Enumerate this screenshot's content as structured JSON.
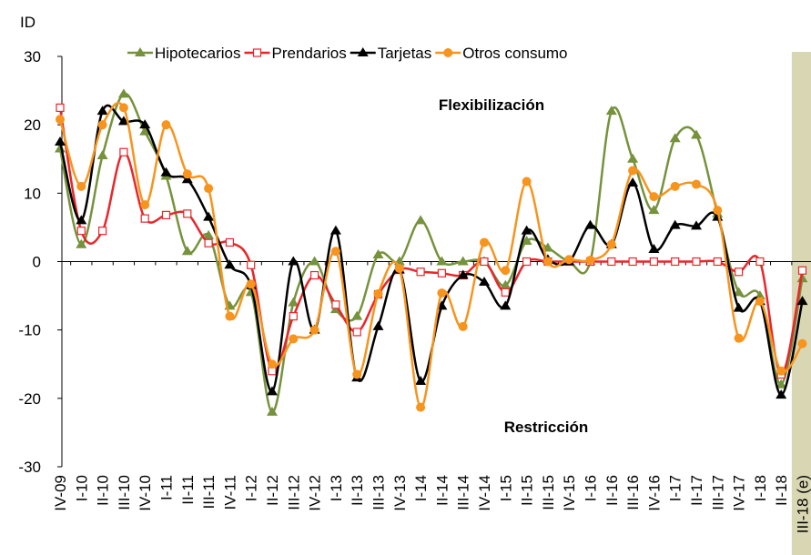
{
  "chart_data": {
    "type": "line",
    "y_label": "ID",
    "annotations": [
      "Flexibilización",
      "Restricción"
    ],
    "categories": [
      "IV-09",
      "I-10",
      "II-10",
      "III-10",
      "IV-10",
      "I-11",
      "II-11",
      "III-11",
      "IV-11",
      "I-12",
      "II-12",
      "III-12",
      "IV-12",
      "I-13",
      "II-13",
      "III-13",
      "IV-13",
      "I-14",
      "II-14",
      "III-14",
      "IV-14",
      "I-15",
      "II-15",
      "III-15",
      "IV-15",
      "I-16",
      "II-16",
      "III-16",
      "IV-16",
      "I-17",
      "II-17",
      "III-17",
      "IV-17",
      "I-18",
      "II-18",
      "III-18 (e)"
    ],
    "series": [
      {
        "name": "Hipotecarios",
        "color": "#76923c",
        "marker": "triangle",
        "values": [
          16.5,
          2.5,
          15.5,
          24.5,
          19,
          12.5,
          1.5,
          3.8,
          -6.5,
          -4.5,
          -22,
          -6,
          0,
          -7,
          -8,
          1,
          0,
          6,
          0,
          0,
          0,
          -3.5,
          3,
          2,
          0,
          0,
          22,
          15,
          7.5,
          18,
          18.5,
          7,
          -4.5,
          -5,
          -18,
          -2.5
        ]
      },
      {
        "name": "Prendarios",
        "color": "#e8262b",
        "marker": "square-open",
        "values": [
          22.5,
          4.5,
          4.5,
          16,
          6.3,
          6.8,
          7,
          2.7,
          2.8,
          -0.5,
          -16,
          -8,
          -2,
          -6.3,
          -10.3,
          -4.8,
          -1.2,
          -1.5,
          -1.7,
          -2,
          0,
          -4.5,
          0,
          0,
          0,
          0,
          0,
          0,
          0,
          0,
          0,
          0,
          -1.5,
          0,
          -16.5,
          -1.3
        ]
      },
      {
        "name": "Tarjetas",
        "color": "#000000",
        "marker": "triangle",
        "values": [
          17.5,
          6,
          22,
          20.5,
          20,
          13,
          12,
          6.5,
          -0.5,
          -3.5,
          -19,
          0,
          -10,
          4.5,
          -17,
          -9.5,
          -1.2,
          -17.5,
          -6.5,
          -2,
          -3,
          -6.5,
          4.5,
          0.3,
          0,
          5.3,
          2.5,
          11.5,
          1.8,
          5.3,
          5.2,
          6.5,
          -6.8,
          -5.8,
          -19.5,
          -5.8
        ]
      },
      {
        "name": "Otros consumo",
        "color": "#f7941d",
        "marker": "circle",
        "values": [
          20.8,
          11,
          20,
          22.5,
          8.3,
          20,
          12.8,
          10.7,
          -8,
          -3.3,
          -15,
          -11.3,
          -10,
          1.5,
          -16.5,
          -4.7,
          -1,
          -21.3,
          -4.6,
          -9.5,
          2.8,
          -1.3,
          11.7,
          0,
          0.3,
          0.2,
          2.5,
          13.3,
          9.5,
          11,
          11.3,
          7.5,
          -11.2,
          -5.8,
          -16,
          -12
        ]
      }
    ],
    "ylim": [
      -30,
      30
    ],
    "yticks": [
      -30,
      -20,
      -10,
      0,
      10,
      20,
      30
    ],
    "shade_color": "#d9d7b3"
  }
}
